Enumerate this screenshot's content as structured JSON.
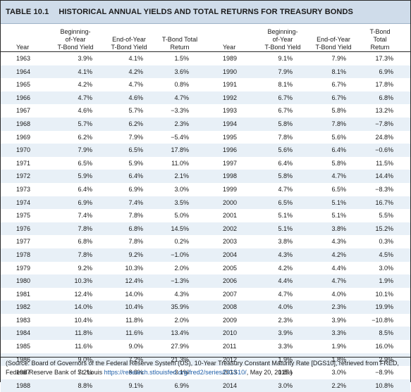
{
  "table": {
    "number": "TABLE 10.1",
    "title": "HISTORICAL ANNUAL YIELDS AND TOTAL RETURNS FOR TREASURY BONDS",
    "headers": {
      "year": "Year",
      "begin": [
        "Beginning-",
        "of-Year",
        "T-Bond Yield"
      ],
      "end": [
        "End-of-Year",
        "T-Bond Yield"
      ],
      "ret": [
        "T-Bond Total",
        "Return"
      ],
      "year2": "Year",
      "begin2": [
        "Beginning-",
        "of-Year",
        "T-Bond Yield"
      ],
      "end2": [
        "End-of-Year",
        "T-Bond Yield"
      ],
      "ret2": [
        "T-Bond",
        "Total",
        "Return"
      ]
    },
    "rows": [
      [
        "1963",
        "3.9%",
        "4.1%",
        "1.5%",
        "1989",
        "9.1%",
        "7.9%",
        "17.3%"
      ],
      [
        "1964",
        "4.1%",
        "4.2%",
        "3.6%",
        "1990",
        "7.9%",
        "8.1%",
        "6.9%"
      ],
      [
        "1965",
        "4.2%",
        "4.7%",
        "0.8%",
        "1991",
        "8.1%",
        "6.7%",
        "17.8%"
      ],
      [
        "1966",
        "4.7%",
        "4.6%",
        "4.7%",
        "1992",
        "6.7%",
        "6.7%",
        "6.8%"
      ],
      [
        "1967",
        "4.6%",
        "5.7%",
        "−3.3%",
        "1993",
        "6.7%",
        "5.8%",
        "13.2%"
      ],
      [
        "1968",
        "5.7%",
        "6.2%",
        "2.3%",
        "1994",
        "5.8%",
        "7.8%",
        "−7.8%"
      ],
      [
        "1969",
        "6.2%",
        "7.9%",
        "−5.4%",
        "1995",
        "7.8%",
        "5.6%",
        "24.8%"
      ],
      [
        "1970",
        "7.9%",
        "6.5%",
        "17.8%",
        "1996",
        "5.6%",
        "6.4%",
        "−0.6%"
      ],
      [
        "1971",
        "6.5%",
        "5.9%",
        "11.0%",
        "1997",
        "6.4%",
        "5.8%",
        "11.5%"
      ],
      [
        "1972",
        "5.9%",
        "6.4%",
        "2.1%",
        "1998",
        "5.8%",
        "4.7%",
        "14.4%"
      ],
      [
        "1973",
        "6.4%",
        "6.9%",
        "3.0%",
        "1999",
        "4.7%",
        "6.5%",
        "−8.3%"
      ],
      [
        "1974",
        "6.9%",
        "7.4%",
        "3.5%",
        "2000",
        "6.5%",
        "5.1%",
        "16.7%"
      ],
      [
        "1975",
        "7.4%",
        "7.8%",
        "5.0%",
        "2001",
        "5.1%",
        "5.1%",
        "5.5%"
      ],
      [
        "1976",
        "7.8%",
        "6.8%",
        "14.5%",
        "2002",
        "5.1%",
        "3.8%",
        "15.2%"
      ],
      [
        "1977",
        "6.8%",
        "7.8%",
        "0.2%",
        "2003",
        "3.8%",
        "4.3%",
        "0.3%"
      ],
      [
        "1978",
        "7.8%",
        "9.2%",
        "−1.0%",
        "2004",
        "4.3%",
        "4.2%",
        "4.5%"
      ],
      [
        "1979",
        "9.2%",
        "10.3%",
        "2.0%",
        "2005",
        "4.2%",
        "4.4%",
        "3.0%"
      ],
      [
        "1980",
        "10.3%",
        "12.4%",
        "−1.3%",
        "2006",
        "4.4%",
        "4.7%",
        "1.9%"
      ],
      [
        "1981",
        "12.4%",
        "14.0%",
        "4.3%",
        "2007",
        "4.7%",
        "4.0%",
        "10.1%"
      ],
      [
        "1982",
        "14.0%",
        "10.4%",
        "35.9%",
        "2008",
        "4.0%",
        "2.3%",
        "19.9%"
      ],
      [
        "1983",
        "10.4%",
        "11.8%",
        "2.0%",
        "2009",
        "2.3%",
        "3.9%",
        "−10.8%"
      ],
      [
        "1984",
        "11.8%",
        "11.6%",
        "13.4%",
        "2010",
        "3.9%",
        "3.3%",
        "8.5%"
      ],
      [
        "1985",
        "11.6%",
        "9.0%",
        "27.9%",
        "2011",
        "3.3%",
        "1.9%",
        "16.0%"
      ],
      [
        "1986",
        "9.0%",
        "7.2%",
        "21.3%",
        "2012",
        "1.9%",
        "1.8%",
        "2.9%"
      ],
      [
        "1987",
        "7.2%",
        "8.8%",
        "−3.1%",
        "2013",
        "1.8%",
        "3.0%",
        "−8.9%"
      ],
      [
        "1988",
        "8.8%",
        "9.1%",
        "6.9%",
        "2014",
        "3.0%",
        "2.2%",
        "10.8%"
      ]
    ]
  },
  "source": {
    "text_before": "(Source: Board of Governors of the Federal Reserve System (US), 10-Year Treasury Constant Maturity Rate [DGS10], retrieved from FRED, Federal Reserve Bank of St. Louis ",
    "link": "https://research.stlouisfed.org/fred2/series/DGS10/",
    "text_after": ", May 20, 2015.)"
  },
  "colors": {
    "title_bar": "#cfdcea",
    "shaded_row": "#e8f0f7",
    "link": "#1f5fa8"
  }
}
